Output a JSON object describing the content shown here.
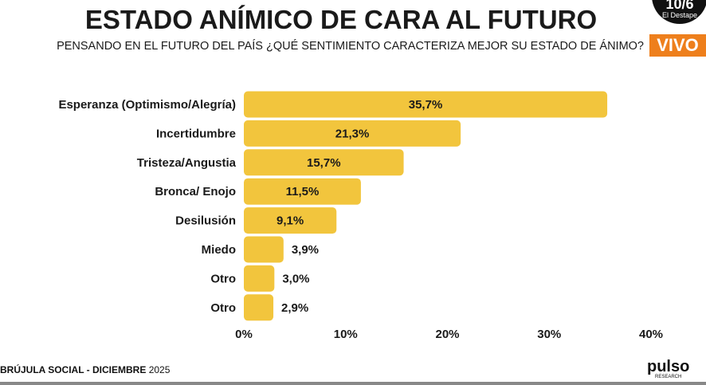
{
  "header": {
    "title": "ESTADO ANÍMICO DE CARA AL FUTURO",
    "subtitle": "PENSANDO EN EL FUTURO DEL PAÍS ¿QUÉ SENTIMIENTO CARACTERIZA MEJOR SU ESTADO DE ÁNIMO?",
    "live_badge": "VIVO",
    "channel_logo_number": "10/6",
    "channel_logo_name": "El Destape"
  },
  "chart_data": {
    "type": "bar",
    "orientation": "horizontal",
    "categories": [
      "Esperanza (Optimismo/Alegría)",
      "Incertidumbre",
      "Tristeza/Angustia",
      "Bronca/ Enojo",
      "Desilusión",
      "Miedo",
      "Otro",
      "Otro"
    ],
    "values": [
      35.7,
      21.3,
      15.7,
      11.5,
      9.1,
      3.9,
      3.0,
      2.9
    ],
    "labels": [
      "35,7%",
      "21,3%",
      "15,7%",
      "11,5%",
      "9,1%",
      "3,9%",
      "3,0%",
      "2,9%"
    ],
    "xlim": [
      0,
      40
    ],
    "ticks": [
      "0%",
      "10%",
      "20%",
      "30%",
      "40%"
    ],
    "grid": false,
    "bar_color": "#f2c53d"
  },
  "footer": {
    "source_bold": "BRÚJULA SOCIAL - DICIEMBRE",
    "source_year": "2025",
    "brand": "pulso",
    "brand_sub": "RESEARCH"
  }
}
